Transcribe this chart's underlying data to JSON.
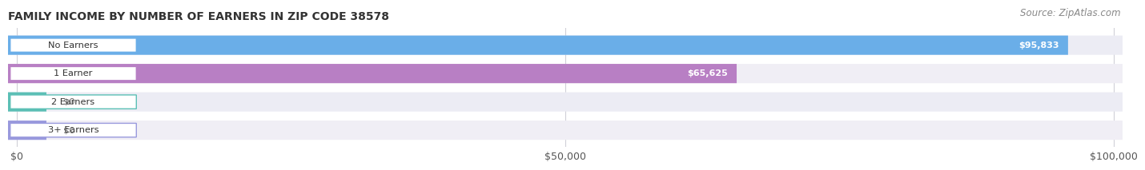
{
  "title": "FAMILY INCOME BY NUMBER OF EARNERS IN ZIP CODE 38578",
  "source": "Source: ZipAtlas.com",
  "categories": [
    "No Earners",
    "1 Earner",
    "2 Earners",
    "3+ Earners"
  ],
  "values": [
    95833,
    65625,
    0,
    0
  ],
  "bar_colors": [
    "#6aaee8",
    "#b87fc4",
    "#5bbfb5",
    "#9999dd"
  ],
  "value_labels": [
    "$95,833",
    "$65,625",
    "$0",
    "$0"
  ],
  "row_bg_colors": [
    "#ececf4",
    "#f0eef5",
    "#ececf4",
    "#f0eef5"
  ],
  "xlim_max": 100000,
  "xticks": [
    0,
    50000,
    100000
  ],
  "xtick_labels": [
    "$0",
    "$50,000",
    "$100,000"
  ],
  "bg_color": "#ffffff",
  "grid_color": "#d0d0d8",
  "title_color": "#333333",
  "source_color": "#888888"
}
